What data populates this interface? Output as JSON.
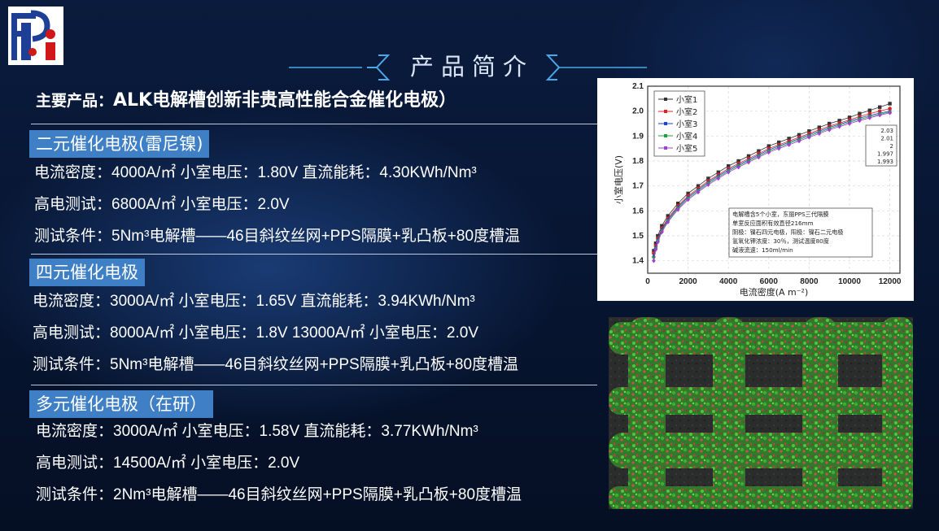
{
  "header": {
    "title": "产品简介"
  },
  "main_title": {
    "prefix": "主要产品：",
    "text": "ALK电解槽创新非贵高性能合金催化电极）"
  },
  "sections": [
    {
      "label": "二元催化电极(雷尼镍)",
      "rows": [
        "电流密度：4000A/㎡  小室电压：1.80V    直流能耗：4.30KWh/Nm³",
        "高电测试：6800A/㎡  小室电压：2.0V",
        "测试条件：5Nm³电解槽——46目斜纹丝网+PPS隔膜+乳凸板+80度槽温"
      ]
    },
    {
      "label": "四元催化电极",
      "rows": [
        "电流密度：3000A/㎡  小室电压：1.65V    直流能耗：3.94KWh/Nm³",
        "高电测试：8000A/㎡  小室电压：1.8V     13000A/㎡  小室电压：2.0V",
        "测试条件：5Nm³电解槽——46目斜纹丝网+PPS隔膜+乳凸板+80度槽温"
      ]
    },
    {
      "label": "多元催化电极（在研）",
      "rows": [
        "电流密度：3000A/㎡  小室电压：1.58V    直流能耗：3.77KWh/Nm³",
        "高电测试：14500A/㎡  小室电压：2.0V",
        "测试条件：2Nm³电解槽——46目斜纹丝网+PPS隔膜+乳凸板+80度槽温"
      ]
    }
  ],
  "chart_data": {
    "type": "line",
    "xlabel": "电流密度(A m⁻²)",
    "ylabel": "小室电压(V)",
    "xlim": [
      0,
      12500
    ],
    "ylim": [
      1.35,
      2.1
    ],
    "xticks": [
      0,
      2000,
      4000,
      6000,
      8000,
      10000,
      12000
    ],
    "yticks": [
      1.4,
      1.5,
      1.6,
      1.7,
      1.8,
      1.9,
      2.0,
      2.1
    ],
    "legend_position": "top-left",
    "end_labels": [
      "2.03",
      "2.01",
      "2",
      "1.997",
      "1.993"
    ],
    "annotation": [
      "电解槽含5个小室，东丽PPS三代隔膜",
      "单室反应面积有效直径216mm",
      "阴极：镍石四元电极，阳极：镍石二元电极",
      "氢氧化钾浓度：30％，测试温度80度",
      "碱液流速：150ml/min"
    ],
    "x": [
      300,
      400,
      500,
      700,
      1000,
      1500,
      2000,
      2500,
      3000,
      3500,
      4000,
      4500,
      5000,
      5500,
      6000,
      6500,
      7000,
      7500,
      8000,
      8500,
      9000,
      9500,
      10000,
      10500,
      11000,
      11500,
      12000
    ],
    "series": [
      {
        "name": "小室1",
        "color": "#333333",
        "marker": "square",
        "values": [
          1.44,
          1.47,
          1.5,
          1.54,
          1.58,
          1.63,
          1.67,
          1.7,
          1.73,
          1.755,
          1.78,
          1.8,
          1.82,
          1.84,
          1.86,
          1.875,
          1.89,
          1.905,
          1.92,
          1.935,
          1.95,
          1.962,
          1.975,
          1.99,
          2.003,
          2.016,
          2.03
        ]
      },
      {
        "name": "小室2",
        "color": "#e02020",
        "marker": "circle",
        "values": [
          1.43,
          1.46,
          1.49,
          1.53,
          1.57,
          1.62,
          1.66,
          1.69,
          1.72,
          1.745,
          1.77,
          1.79,
          1.81,
          1.83,
          1.85,
          1.865,
          1.88,
          1.895,
          1.91,
          1.925,
          1.94,
          1.952,
          1.965,
          1.978,
          1.99,
          2.0,
          2.01
        ]
      },
      {
        "name": "小室3",
        "color": "#2040d0",
        "marker": "triangle",
        "values": [
          1.42,
          1.455,
          1.485,
          1.525,
          1.565,
          1.615,
          1.655,
          1.685,
          1.715,
          1.74,
          1.765,
          1.785,
          1.805,
          1.825,
          1.845,
          1.86,
          1.875,
          1.89,
          1.905,
          1.92,
          1.935,
          1.947,
          1.96,
          1.972,
          1.983,
          1.992,
          2.0
        ]
      },
      {
        "name": "小室4",
        "color": "#20a040",
        "marker": "triangle-down",
        "values": [
          1.41,
          1.45,
          1.48,
          1.52,
          1.56,
          1.61,
          1.65,
          1.68,
          1.71,
          1.735,
          1.76,
          1.78,
          1.8,
          1.82,
          1.84,
          1.855,
          1.87,
          1.885,
          1.9,
          1.915,
          1.93,
          1.943,
          1.955,
          1.967,
          1.978,
          1.988,
          1.997
        ]
      },
      {
        "name": "小室5",
        "color": "#a040d0",
        "marker": "diamond",
        "values": [
          1.4,
          1.445,
          1.475,
          1.515,
          1.555,
          1.605,
          1.645,
          1.675,
          1.705,
          1.73,
          1.755,
          1.775,
          1.795,
          1.815,
          1.835,
          1.85,
          1.865,
          1.88,
          1.895,
          1.91,
          1.925,
          1.938,
          1.95,
          1.962,
          1.973,
          1.984,
          1.993
        ]
      }
    ]
  },
  "colors": {
    "accent_bar": "#3f7fc5",
    "background": "#071531",
    "title": "#dbe6f5"
  },
  "icons": {
    "logo": "company-logo",
    "title_decoration": "chevron-bracket"
  }
}
